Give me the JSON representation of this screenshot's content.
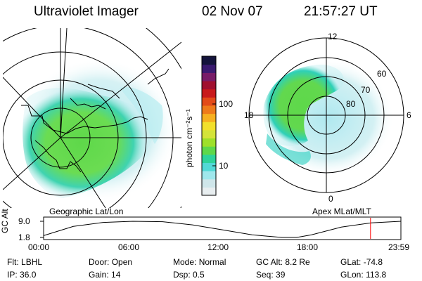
{
  "header": {
    "instrument": "Ultraviolet Imager",
    "date": "02 Nov 07",
    "time": "21:57:27 UT"
  },
  "left_panel": {
    "caption": "Geographic Lat/Lon"
  },
  "right_panel": {
    "caption": "Apex MLat/MLT",
    "mlt_labels": [
      "12",
      "18",
      "6",
      "0"
    ],
    "lat_labels": [
      "60",
      "70",
      "80"
    ]
  },
  "colorbar": {
    "unit_label": "photon cm⁻²s⁻¹",
    "ticks": [
      "100",
      "10"
    ],
    "colors": [
      "#e8eef0",
      "#cfe6ea",
      "#9fe7ec",
      "#52d9d6",
      "#2ed39a",
      "#5ed84a",
      "#9ee02a",
      "#d4e43a",
      "#f2e02c",
      "#f6b020",
      "#ee7a1a",
      "#e24a18",
      "#c81a1c",
      "#a01030",
      "#781c68",
      "#3a1a70",
      "#14143c"
    ]
  },
  "timeline": {
    "ylabel": "GC Alt",
    "y_ticks": [
      "9.0",
      "1.8"
    ],
    "x_ticks": [
      "00:00",
      "06:00",
      "12:00",
      "18:00",
      "23:59"
    ],
    "altitude_curve": {
      "hours": [
        0,
        2,
        4,
        6,
        8,
        10,
        12,
        14,
        16,
        17,
        18,
        20,
        22,
        24
      ],
      "alt": [
        2.6,
        6.7,
        8.5,
        9.0,
        8.8,
        7.4,
        5.2,
        3.0,
        1.8,
        1.8,
        3.0,
        6.4,
        8.3,
        9.0
      ]
    },
    "current_hour": 21.96,
    "marker_color": "#ff0000"
  },
  "footer": {
    "rows": [
      [
        {
          "label": "Flt:",
          "value": "LBHL"
        },
        {
          "label": "Door:",
          "value": "Open"
        },
        {
          "label": "Mode:",
          "value": "Normal"
        },
        {
          "label": "GC Alt:",
          "value": "8.2 Re"
        },
        {
          "label": "GLat:",
          "value": "-74.8"
        }
      ],
      [
        {
          "label": "IP:",
          "value": "36.0"
        },
        {
          "label": "Gain:",
          "value": "14"
        },
        {
          "label": "Dsp:",
          "value": "0.5"
        },
        {
          "label": "Seq:",
          "value": "39"
        },
        {
          "label": "GLon:",
          "value": "113.8"
        }
      ]
    ]
  }
}
